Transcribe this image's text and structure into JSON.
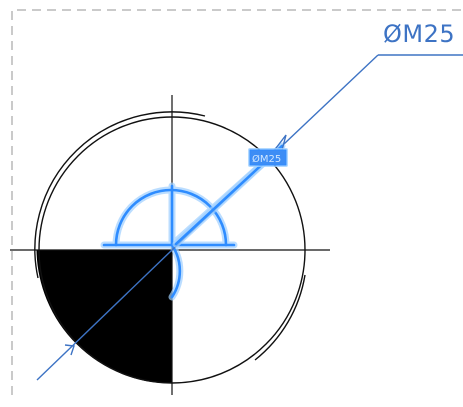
{
  "drawing": {
    "callout_label": "ØM25",
    "selected_label": "ØM25",
    "colors": {
      "geometry": "#111111",
      "dimension": "#3d73c4",
      "selection": "#2e8cff",
      "selection_glow": "#9fd0ff",
      "frame_dash": "#b8b8b8",
      "fill": "#000000"
    }
  }
}
